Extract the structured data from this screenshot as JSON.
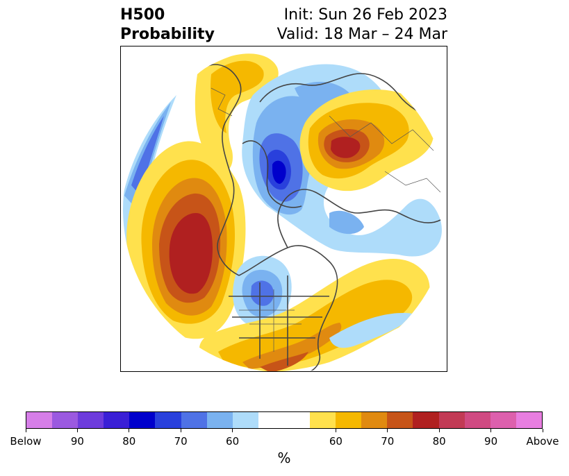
{
  "title": {
    "left_line1": "H500",
    "left_line2": "Probability",
    "right_line1": "Init: Sun 26 Feb 2023",
    "right_line2": "Valid: 18 Mar – 24 Mar"
  },
  "colorbar": {
    "colors": [
      "#d67ee8",
      "#9b59e0",
      "#6d3bdc",
      "#3a1fd6",
      "#0000cc",
      "#2940dc",
      "#4f72e6",
      "#7ab2f0",
      "#aedcfa",
      "#ffffff",
      "#ffffff",
      "#ffe14d",
      "#f5b800",
      "#e08a10",
      "#c75418",
      "#b02020",
      "#c23a55",
      "#d04a82",
      "#dd60ad",
      "#e87ee0"
    ],
    "tick_labels": [
      "Below",
      "90",
      "80",
      "70",
      "60",
      "60",
      "70",
      "80",
      "90",
      "Above"
    ],
    "unit": "%"
  },
  "map": {
    "projection": "polar-stereographic",
    "anomalies": [
      {
        "region": "northeast-pacific",
        "sign": "above",
        "max_level": "80"
      },
      {
        "region": "siberia",
        "sign": "above",
        "max_level": "80"
      },
      {
        "region": "eastern-united-states",
        "sign": "above",
        "max_level": "70"
      },
      {
        "region": "europe",
        "sign": "above",
        "max_level": "60"
      },
      {
        "region": "arctic-greenland",
        "sign": "below",
        "max_level": "80"
      },
      {
        "region": "central-canada",
        "sign": "below",
        "max_level": "70"
      },
      {
        "region": "north-pacific-west",
        "sign": "below",
        "max_level": "70"
      }
    ]
  }
}
